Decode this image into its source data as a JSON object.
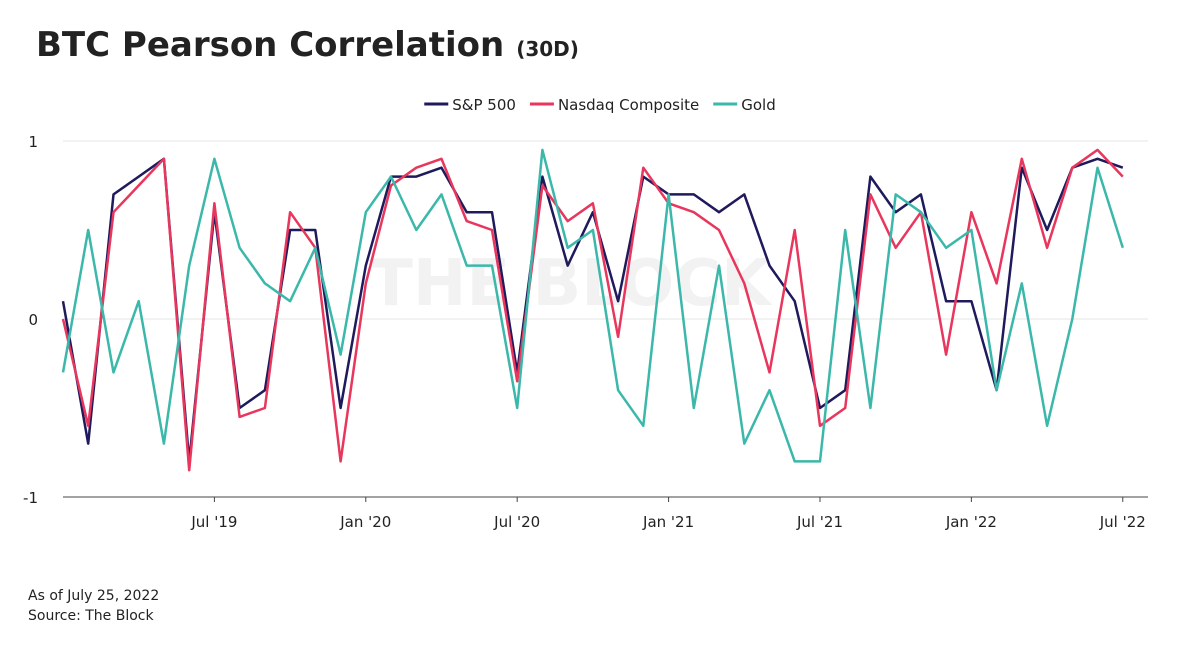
{
  "chart_data": {
    "type": "line",
    "title": "BTC Pearson Correlation",
    "title_note": "(30D)",
    "watermark": "THE BLOCK",
    "footnotes": [
      "As of July 25, 2022",
      "Source: The Block"
    ],
    "x": [
      "2019-01",
      "2019-02",
      "2019-03",
      "2019-04",
      "2019-05",
      "2019-06",
      "2019-07",
      "2019-08",
      "2019-09",
      "2019-10",
      "2019-11",
      "2019-12",
      "2020-01",
      "2020-02",
      "2020-03",
      "2020-04",
      "2020-05",
      "2020-06",
      "2020-07",
      "2020-08",
      "2020-09",
      "2020-10",
      "2020-11",
      "2020-12",
      "2021-01",
      "2021-02",
      "2021-03",
      "2021-04",
      "2021-05",
      "2021-06",
      "2021-07",
      "2021-08",
      "2021-09",
      "2021-10",
      "2021-11",
      "2021-12",
      "2022-01",
      "2022-02",
      "2022-03",
      "2022-04",
      "2022-05",
      "2022-06",
      "2022-07"
    ],
    "xlim": [
      "2019-01",
      "2022-08"
    ],
    "xticks": [
      {
        "value": "2019-07",
        "label": "Jul '19"
      },
      {
        "value": "2020-01",
        "label": "Jan '20"
      },
      {
        "value": "2020-07",
        "label": "Jul '20"
      },
      {
        "value": "2021-01",
        "label": "Jan '21"
      },
      {
        "value": "2021-07",
        "label": "Jul '21"
      },
      {
        "value": "2022-01",
        "label": "Jan '22"
      },
      {
        "value": "2022-07",
        "label": "Jul '22"
      }
    ],
    "ylim": [
      -1,
      1
    ],
    "yticks": [
      -1,
      0,
      1
    ],
    "grid": true,
    "legend": "top",
    "series": [
      {
        "name": "S&P 500",
        "color": "#1f1a5c",
        "values": [
          0.1,
          -0.7,
          0.7,
          0.8,
          0.9,
          -0.8,
          0.6,
          -0.5,
          -0.4,
          0.5,
          0.5,
          -0.5,
          0.3,
          0.8,
          0.8,
          0.85,
          0.6,
          0.6,
          -0.3,
          0.8,
          0.3,
          0.6,
          0.1,
          0.8,
          0.7,
          0.7,
          0.6,
          0.7,
          0.3,
          0.1,
          -0.5,
          -0.4,
          0.8,
          0.6,
          0.7,
          0.1,
          0.1,
          -0.4,
          0.85,
          0.5,
          0.85,
          0.9,
          0.85
        ]
      },
      {
        "name": "Nasdaq Composite",
        "color": "#e8365d",
        "values": [
          0.0,
          -0.6,
          0.6,
          0.75,
          0.9,
          -0.85,
          0.65,
          -0.55,
          -0.5,
          0.6,
          0.4,
          -0.8,
          0.2,
          0.75,
          0.85,
          0.9,
          0.55,
          0.5,
          -0.35,
          0.75,
          0.55,
          0.65,
          -0.1,
          0.85,
          0.65,
          0.6,
          0.5,
          0.2,
          -0.3,
          0.5,
          -0.6,
          -0.5,
          0.7,
          0.4,
          0.6,
          -0.2,
          0.6,
          0.2,
          0.9,
          0.4,
          0.85,
          0.95,
          0.8
        ]
      },
      {
        "name": "Gold",
        "color": "#3bb8aa",
        "values": [
          -0.3,
          0.5,
          -0.3,
          0.1,
          -0.7,
          0.3,
          0.9,
          0.4,
          0.2,
          0.1,
          0.4,
          -0.2,
          0.6,
          0.8,
          0.5,
          0.7,
          0.3,
          0.3,
          -0.5,
          0.95,
          0.4,
          0.5,
          -0.4,
          -0.6,
          0.7,
          -0.5,
          0.3,
          -0.7,
          -0.4,
          -0.8,
          -0.8,
          0.5,
          -0.5,
          0.7,
          0.6,
          0.4,
          0.5,
          -0.4,
          0.2,
          -0.6,
          0.0,
          0.85,
          0.4
        ]
      }
    ]
  }
}
